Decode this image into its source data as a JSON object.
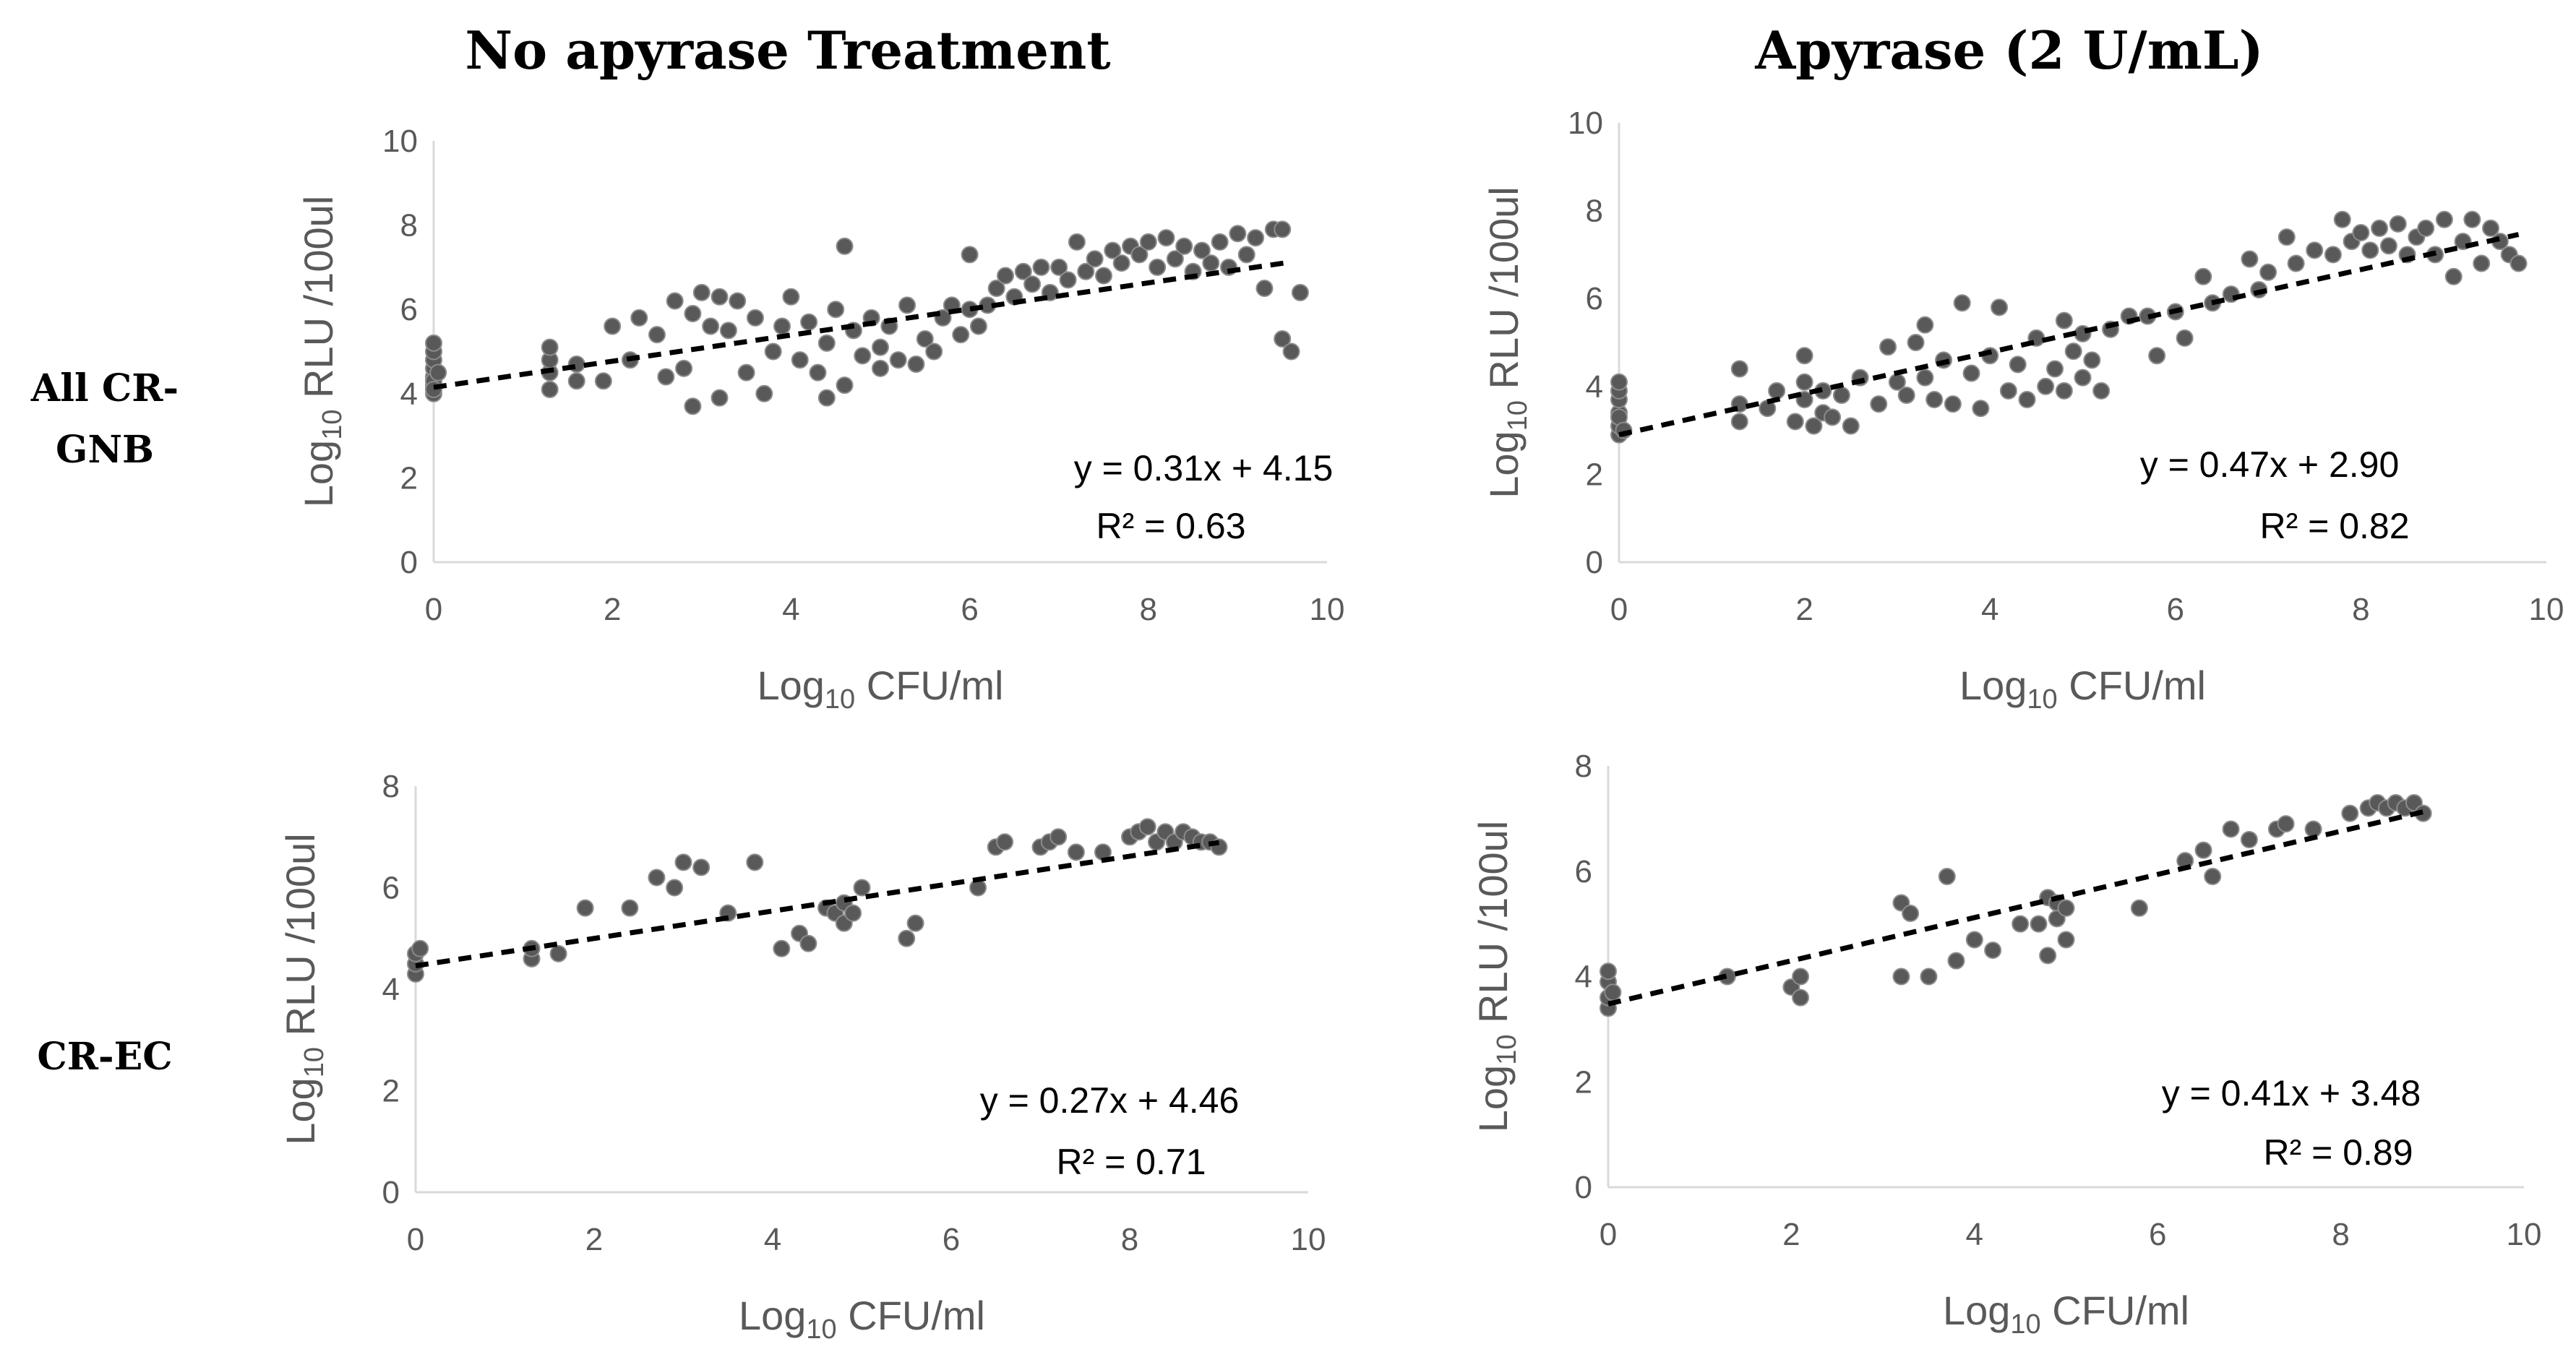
{
  "column_titles": [
    "No apyrase Treatment",
    "Apyrase (2 U/mL)"
  ],
  "row_labels": [
    [
      "All CR-",
      "GNB"
    ],
    [
      "CR-EC"
    ]
  ],
  "chart_data": [
    {
      "type": "scatter",
      "panel": "All CR-GNB / No apyrase Treatment",
      "xlabel": "Log10 CFU/ml",
      "ylabel": "Log10 RLU /100ul",
      "xlim": [
        0,
        10
      ],
      "ylim": [
        0,
        10
      ],
      "xticks": [
        0,
        2,
        4,
        6,
        8,
        10
      ],
      "yticks": [
        0,
        2,
        4,
        6,
        8,
        10
      ],
      "grid": false,
      "trendline": {
        "slope": 0.31,
        "intercept": 4.15,
        "x_range": [
          0,
          9.6
        ]
      },
      "equation": "y = 0.31x + 4.15",
      "r_squared": "R² = 0.63",
      "points": [
        [
          0,
          4.0
        ],
        [
          0,
          4.2
        ],
        [
          0,
          4.4
        ],
        [
          0,
          4.6
        ],
        [
          0,
          4.8
        ],
        [
          0,
          5.0
        ],
        [
          0,
          5.2
        ],
        [
          0,
          4.3
        ],
        [
          0,
          4.1
        ],
        [
          0.05,
          4.5
        ],
        [
          1.3,
          4.1
        ],
        [
          1.3,
          4.5
        ],
        [
          1.3,
          4.8
        ],
        [
          1.3,
          5.1
        ],
        [
          1.6,
          4.3
        ],
        [
          1.6,
          4.7
        ],
        [
          1.9,
          4.3
        ],
        [
          2.0,
          5.6
        ],
        [
          2.2,
          4.8
        ],
        [
          2.3,
          5.8
        ],
        [
          2.5,
          5.4
        ],
        [
          2.6,
          4.4
        ],
        [
          2.8,
          4.6
        ],
        [
          2.7,
          6.2
        ],
        [
          2.9,
          5.9
        ],
        [
          2.9,
          3.7
        ],
        [
          3.0,
          6.4
        ],
        [
          3.1,
          5.6
        ],
        [
          3.2,
          6.3
        ],
        [
          3.3,
          5.5
        ],
        [
          3.2,
          3.9
        ],
        [
          3.4,
          6.2
        ],
        [
          3.5,
          4.5
        ],
        [
          3.6,
          5.8
        ],
        [
          3.7,
          4.0
        ],
        [
          3.8,
          5.0
        ],
        [
          3.9,
          5.6
        ],
        [
          4.0,
          6.3
        ],
        [
          4.1,
          4.8
        ],
        [
          4.2,
          5.7
        ],
        [
          4.3,
          4.5
        ],
        [
          4.4,
          5.2
        ],
        [
          4.4,
          3.9
        ],
        [
          4.5,
          6.0
        ],
        [
          4.6,
          7.5
        ],
        [
          4.6,
          4.2
        ],
        [
          4.7,
          5.5
        ],
        [
          4.8,
          4.9
        ],
        [
          4.9,
          5.8
        ],
        [
          5.0,
          5.1
        ],
        [
          5.0,
          4.6
        ],
        [
          5.1,
          5.6
        ],
        [
          5.2,
          4.8
        ],
        [
          5.3,
          6.1
        ],
        [
          5.4,
          4.7
        ],
        [
          5.5,
          5.3
        ],
        [
          5.6,
          5.0
        ],
        [
          5.7,
          5.8
        ],
        [
          5.8,
          6.1
        ],
        [
          5.9,
          5.4
        ],
        [
          6.0,
          6.0
        ],
        [
          6.0,
          7.3
        ],
        [
          6.1,
          5.6
        ],
        [
          6.2,
          6.1
        ],
        [
          6.3,
          6.5
        ],
        [
          6.4,
          6.8
        ],
        [
          6.5,
          6.3
        ],
        [
          6.6,
          6.9
        ],
        [
          6.7,
          6.6
        ],
        [
          6.8,
          7.0
        ],
        [
          6.9,
          6.4
        ],
        [
          7.0,
          7.0
        ],
        [
          7.1,
          6.7
        ],
        [
          7.2,
          7.6
        ],
        [
          7.3,
          6.9
        ],
        [
          7.4,
          7.2
        ],
        [
          7.5,
          6.8
        ],
        [
          7.6,
          7.4
        ],
        [
          7.7,
          7.1
        ],
        [
          7.8,
          7.5
        ],
        [
          7.9,
          7.3
        ],
        [
          8.0,
          7.6
        ],
        [
          8.1,
          7.0
        ],
        [
          8.2,
          7.7
        ],
        [
          8.3,
          7.2
        ],
        [
          8.4,
          7.5
        ],
        [
          8.5,
          6.9
        ],
        [
          8.6,
          7.4
        ],
        [
          8.7,
          7.1
        ],
        [
          8.8,
          7.6
        ],
        [
          8.9,
          7.0
        ],
        [
          9.0,
          7.8
        ],
        [
          9.1,
          7.3
        ],
        [
          9.2,
          7.7
        ],
        [
          9.3,
          6.5
        ],
        [
          9.4,
          7.9
        ],
        [
          9.5,
          5.3
        ],
        [
          9.5,
          7.9
        ],
        [
          9.6,
          5.0
        ],
        [
          9.7,
          6.4
        ]
      ]
    },
    {
      "type": "scatter",
      "panel": "All CR-GNB / Apyrase (2 U/mL)",
      "xlabel": "Log10 CFU/ml",
      "ylabel": "Log10 RLU /100ul",
      "xlim": [
        0,
        10
      ],
      "ylim": [
        0,
        10
      ],
      "xticks": [
        0,
        2,
        4,
        6,
        8,
        10
      ],
      "yticks": [
        0,
        2,
        4,
        6,
        8,
        10
      ],
      "grid": false,
      "trendline": {
        "slope": 0.47,
        "intercept": 2.9,
        "x_range": [
          0,
          9.7
        ]
      },
      "equation": "y = 0.47x + 2.90",
      "r_squared": "R² = 0.82",
      "points": [
        [
          0,
          2.9
        ],
        [
          0,
          3.1
        ],
        [
          0,
          3.4
        ],
        [
          0,
          3.7
        ],
        [
          0,
          3.9
        ],
        [
          0,
          4.1
        ],
        [
          0,
          3.3
        ],
        [
          0.05,
          3.0
        ],
        [
          1.3,
          3.2
        ],
        [
          1.3,
          3.6
        ],
        [
          1.3,
          4.4
        ],
        [
          1.6,
          3.5
        ],
        [
          1.7,
          3.9
        ],
        [
          1.9,
          3.2
        ],
        [
          2.0,
          3.7
        ],
        [
          2.0,
          4.1
        ],
        [
          2.0,
          4.7
        ],
        [
          2.1,
          3.1
        ],
        [
          2.2,
          3.4
        ],
        [
          2.2,
          3.9
        ],
        [
          2.3,
          3.3
        ],
        [
          2.4,
          3.8
        ],
        [
          2.5,
          3.1
        ],
        [
          2.6,
          4.2
        ],
        [
          2.8,
          3.6
        ],
        [
          2.9,
          4.9
        ],
        [
          3.0,
          4.1
        ],
        [
          3.1,
          3.8
        ],
        [
          3.2,
          5.0
        ],
        [
          3.3,
          4.2
        ],
        [
          3.3,
          5.4
        ],
        [
          3.4,
          3.7
        ],
        [
          3.5,
          4.6
        ],
        [
          3.6,
          3.6
        ],
        [
          3.7,
          5.9
        ],
        [
          3.8,
          4.3
        ],
        [
          3.9,
          3.5
        ],
        [
          4.0,
          4.7
        ],
        [
          4.1,
          5.8
        ],
        [
          4.2,
          3.9
        ],
        [
          4.3,
          4.5
        ],
        [
          4.4,
          3.7
        ],
        [
          4.5,
          5.1
        ],
        [
          4.6,
          4.0
        ],
        [
          4.7,
          4.4
        ],
        [
          4.8,
          5.5
        ],
        [
          4.8,
          3.9
        ],
        [
          4.9,
          4.8
        ],
        [
          5.0,
          4.2
        ],
        [
          5.0,
          5.2
        ],
        [
          5.1,
          4.6
        ],
        [
          5.2,
          3.9
        ],
        [
          5.3,
          5.3
        ],
        [
          5.5,
          5.6
        ],
        [
          5.7,
          5.6
        ],
        [
          5.8,
          4.7
        ],
        [
          6.0,
          5.7
        ],
        [
          6.1,
          5.1
        ],
        [
          6.3,
          6.5
        ],
        [
          6.4,
          5.9
        ],
        [
          6.6,
          6.1
        ],
        [
          6.8,
          6.9
        ],
        [
          6.9,
          6.2
        ],
        [
          7.0,
          6.6
        ],
        [
          7.2,
          7.4
        ],
        [
          7.3,
          6.8
        ],
        [
          7.5,
          7.1
        ],
        [
          7.7,
          7.0
        ],
        [
          7.8,
          7.8
        ],
        [
          7.9,
          7.3
        ],
        [
          8.0,
          7.5
        ],
        [
          8.1,
          7.1
        ],
        [
          8.2,
          7.6
        ],
        [
          8.3,
          7.2
        ],
        [
          8.4,
          7.7
        ],
        [
          8.5,
          7.0
        ],
        [
          8.6,
          7.4
        ],
        [
          8.7,
          7.6
        ],
        [
          8.8,
          7.0
        ],
        [
          8.9,
          7.8
        ],
        [
          9.0,
          6.5
        ],
        [
          9.1,
          7.3
        ],
        [
          9.2,
          7.8
        ],
        [
          9.3,
          6.8
        ],
        [
          9.4,
          7.6
        ],
        [
          9.5,
          7.3
        ],
        [
          9.6,
          7.0
        ],
        [
          9.7,
          6.8
        ]
      ]
    },
    {
      "type": "scatter",
      "panel": "CR-EC / No apyrase Treatment",
      "xlabel": "Log10 CFU/ml",
      "ylabel": "Log10 RLU /100ul",
      "xlim": [
        0,
        10
      ],
      "ylim": [
        0,
        8
      ],
      "xticks": [
        0,
        2,
        4,
        6,
        8,
        10
      ],
      "yticks": [
        0,
        2,
        4,
        6,
        8
      ],
      "grid": false,
      "trendline": {
        "slope": 0.27,
        "intercept": 4.46,
        "x_range": [
          0,
          9.0
        ]
      },
      "equation": "y = 0.27x + 4.46",
      "r_squared": "R² = 0.71",
      "points": [
        [
          0,
          4.3
        ],
        [
          0,
          4.5
        ],
        [
          0,
          4.7
        ],
        [
          0.05,
          4.8
        ],
        [
          1.3,
          4.6
        ],
        [
          1.3,
          4.8
        ],
        [
          1.6,
          4.7
        ],
        [
          1.9,
          5.6
        ],
        [
          2.4,
          5.6
        ],
        [
          2.7,
          6.2
        ],
        [
          2.9,
          6.0
        ],
        [
          3.0,
          6.5
        ],
        [
          3.2,
          6.4
        ],
        [
          3.5,
          5.5
        ],
        [
          3.8,
          6.5
        ],
        [
          4.1,
          4.8
        ],
        [
          4.3,
          5.1
        ],
        [
          4.4,
          4.9
        ],
        [
          4.6,
          5.6
        ],
        [
          4.7,
          5.5
        ],
        [
          4.8,
          5.3
        ],
        [
          4.8,
          5.7
        ],
        [
          4.9,
          5.5
        ],
        [
          5.0,
          6.0
        ],
        [
          5.5,
          5.0
        ],
        [
          5.6,
          5.3
        ],
        [
          6.3,
          6.0
        ],
        [
          6.5,
          6.8
        ],
        [
          6.6,
          6.9
        ],
        [
          7.0,
          6.8
        ],
        [
          7.1,
          6.9
        ],
        [
          7.2,
          7.0
        ],
        [
          7.4,
          6.7
        ],
        [
          7.7,
          6.7
        ],
        [
          8.0,
          7.0
        ],
        [
          8.1,
          7.1
        ],
        [
          8.2,
          7.2
        ],
        [
          8.3,
          6.9
        ],
        [
          8.4,
          7.1
        ],
        [
          8.5,
          6.9
        ],
        [
          8.6,
          7.1
        ],
        [
          8.7,
          7.0
        ],
        [
          8.8,
          6.9
        ],
        [
          8.9,
          6.9
        ],
        [
          9.0,
          6.8
        ]
      ]
    },
    {
      "type": "scatter",
      "panel": "CR-EC / Apyrase (2 U/mL)",
      "xlabel": "Log10 CFU/ml",
      "ylabel": "Log10 RLU /100ul",
      "xlim": [
        0,
        10
      ],
      "ylim": [
        0,
        8
      ],
      "xticks": [
        0,
        2,
        4,
        6,
        8,
        10
      ],
      "yticks": [
        0,
        2,
        4,
        6,
        8
      ],
      "grid": false,
      "trendline": {
        "slope": 0.41,
        "intercept": 3.48,
        "x_range": [
          0,
          8.9
        ]
      },
      "equation": "y = 0.41x + 3.48",
      "r_squared": "R² = 0.89",
      "points": [
        [
          0,
          3.4
        ],
        [
          0,
          3.6
        ],
        [
          0,
          3.9
        ],
        [
          0,
          4.1
        ],
        [
          0.05,
          3.7
        ],
        [
          1.3,
          4.0
        ],
        [
          2.0,
          3.8
        ],
        [
          2.1,
          3.6
        ],
        [
          2.1,
          4.0
        ],
        [
          3.2,
          4.0
        ],
        [
          3.2,
          5.4
        ],
        [
          3.3,
          5.2
        ],
        [
          3.5,
          4.0
        ],
        [
          3.7,
          5.9
        ],
        [
          3.8,
          4.3
        ],
        [
          4.0,
          4.7
        ],
        [
          4.2,
          4.5
        ],
        [
          4.5,
          5.0
        ],
        [
          4.7,
          5.0
        ],
        [
          4.8,
          5.5
        ],
        [
          4.8,
          4.4
        ],
        [
          4.9,
          5.4
        ],
        [
          4.9,
          5.1
        ],
        [
          5.0,
          4.7
        ],
        [
          5.0,
          5.3
        ],
        [
          5.8,
          5.3
        ],
        [
          6.3,
          6.2
        ],
        [
          6.5,
          6.4
        ],
        [
          6.6,
          5.9
        ],
        [
          6.8,
          6.8
        ],
        [
          7.0,
          6.6
        ],
        [
          7.3,
          6.8
        ],
        [
          7.4,
          6.9
        ],
        [
          7.7,
          6.8
        ],
        [
          8.1,
          7.1
        ],
        [
          8.3,
          7.2
        ],
        [
          8.4,
          7.3
        ],
        [
          8.5,
          7.2
        ],
        [
          8.6,
          7.3
        ],
        [
          8.7,
          7.2
        ],
        [
          8.8,
          7.3
        ],
        [
          8.9,
          7.1
        ]
      ]
    }
  ]
}
